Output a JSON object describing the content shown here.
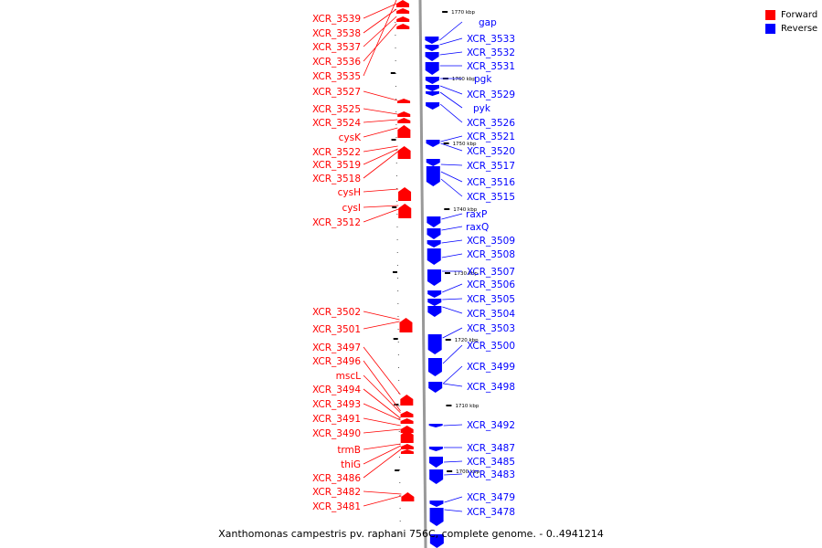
{
  "legend": {
    "forward": "Forward",
    "reverse": "Reverse"
  },
  "colors": {
    "forward": "#ff0000",
    "reverse": "#0000ff",
    "backbone": "#999999"
  },
  "caption": "Xanthomonas campestris pv. raphani 756C, complete genome. - 0..4941214",
  "ticks": [
    "1770 kbp",
    "1760 kbp",
    "1750 kbp",
    "1740 kbp",
    "1730 kbp",
    "1720 kbp",
    "1710 kbp",
    "1700 kbp"
  ],
  "forward_labels": [
    "XCR_3539",
    "XCR_3538",
    "XCR_3537",
    "XCR_3536",
    "XCR_3535",
    "XCR_3527",
    "XCR_3525",
    "XCR_3524",
    "cysK",
    "XCR_3522",
    "XCR_3519",
    "XCR_3518",
    "cysH",
    "cysI",
    "XCR_3512",
    "XCR_3502",
    "XCR_3501",
    "XCR_3497",
    "XCR_3496",
    "mscL",
    "XCR_3494",
    "XCR_3493",
    "XCR_3491",
    "XCR_3490",
    "trmB",
    "thiG",
    "XCR_3486",
    "XCR_3482",
    "XCR_3481"
  ],
  "reverse_labels": [
    "gap",
    "XCR_3533",
    "XCR_3532",
    "XCR_3531",
    "pgk",
    "XCR_3529",
    "pyk",
    "XCR_3526",
    "XCR_3521",
    "XCR_3520",
    "XCR_3517",
    "XCR_3516",
    "XCR_3515",
    "raxP",
    "raxQ",
    "XCR_3509",
    "XCR_3508",
    "XCR_3507",
    "XCR_3506",
    "XCR_3505",
    "XCR_3504",
    "XCR_3503",
    "XCR_3500",
    "XCR_3499",
    "XCR_3498",
    "XCR_3492",
    "XCR_3487",
    "XCR_3485",
    "XCR_3483",
    "XCR_3479",
    "XCR_3478"
  ]
}
